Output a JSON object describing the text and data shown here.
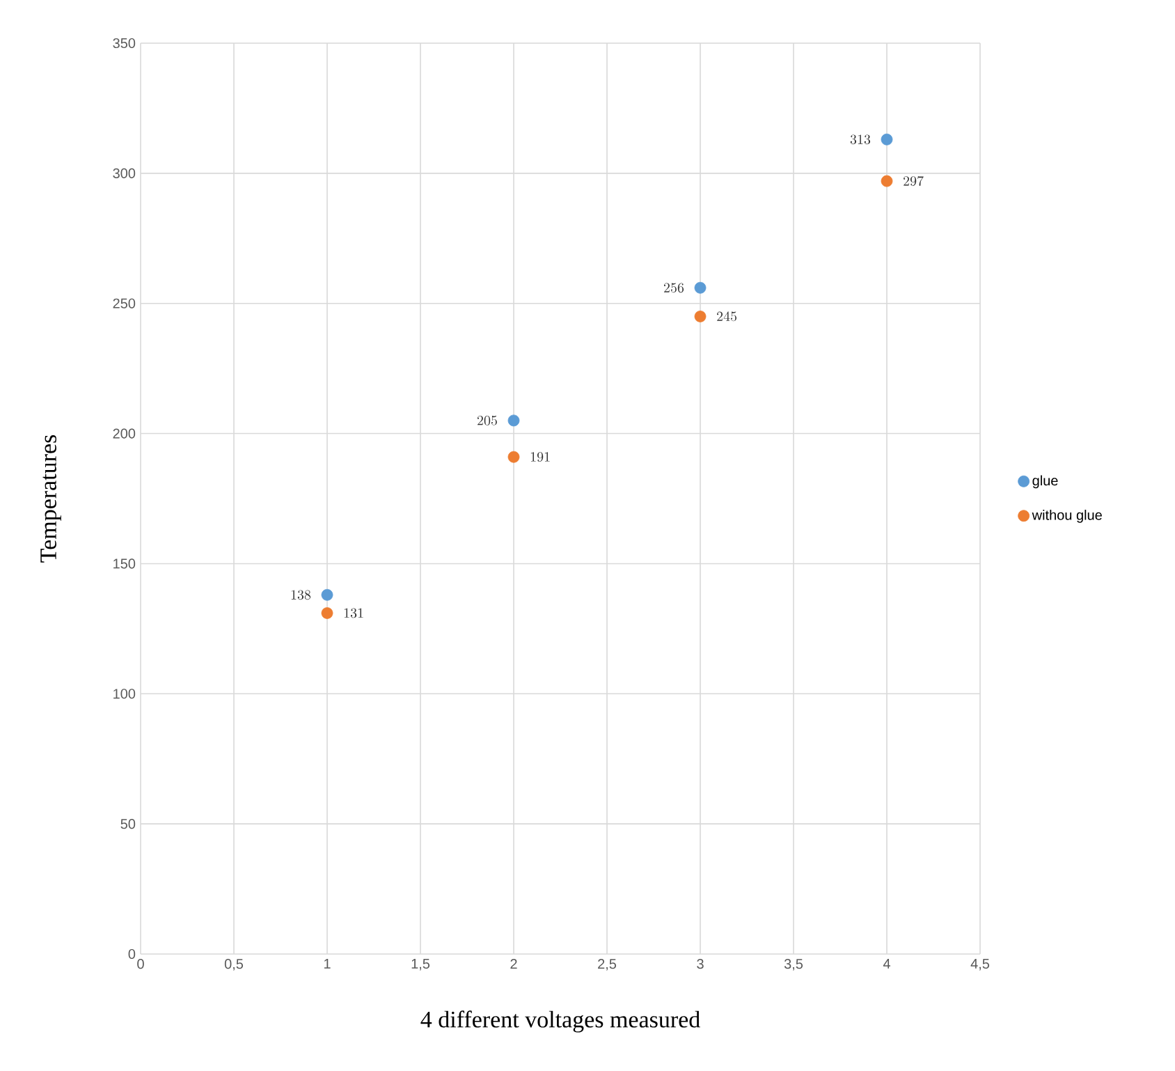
{
  "chart_data": {
    "type": "scatter",
    "xlabel": "4 different voltages measured",
    "ylabel": "Temperatures",
    "x": [
      1,
      2,
      3,
      4
    ],
    "series": [
      {
        "name": "glue",
        "color": "#5b9bd5",
        "values": [
          138,
          205,
          256,
          313
        ]
      },
      {
        "name": "withou glue",
        "color": "#ed7d31",
        "values": [
          131,
          191,
          245,
          297
        ]
      }
    ],
    "xlim": [
      0,
      4.5
    ],
    "xticks": [
      0,
      {
        "value": 0.5,
        "label": "0,5"
      },
      1,
      {
        "value": 1.5,
        "label": "1,5"
      },
      2,
      {
        "value": 2.5,
        "label": "2,5"
      },
      3,
      {
        "value": 3.5,
        "label": "3,5"
      },
      4,
      {
        "value": 4.5,
        "label": "4,5"
      }
    ],
    "ylim": [
      0,
      350
    ],
    "yticks": [
      0,
      50,
      100,
      150,
      200,
      250,
      300,
      350
    ],
    "grid": true,
    "legend": "right",
    "marker": "circle",
    "data_labels": true
  }
}
